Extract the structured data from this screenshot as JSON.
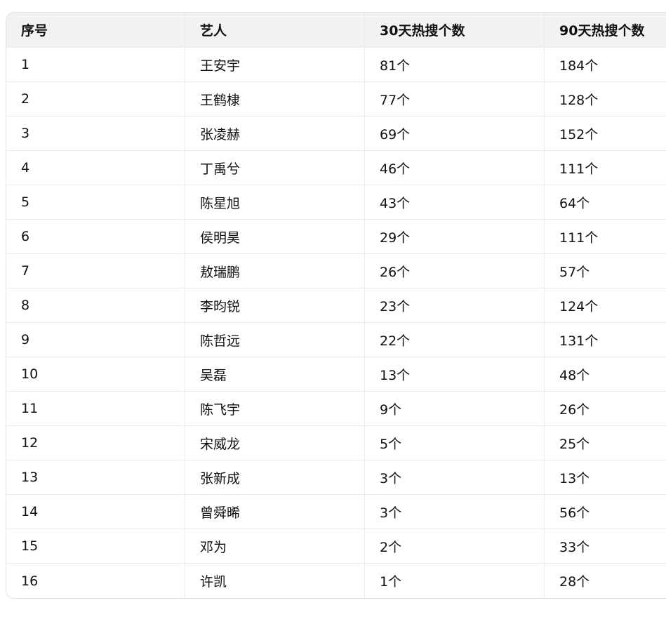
{
  "table": {
    "headers": [
      "序号",
      "艺人",
      "30天热搜个数",
      "90天热搜个数"
    ],
    "rows": [
      [
        "1",
        "王安宇",
        "81个",
        "184个"
      ],
      [
        "2",
        "王鹤棣",
        "77个",
        "128个"
      ],
      [
        "3",
        "张凌赫",
        "69个",
        "152个"
      ],
      [
        "4",
        "丁禹兮",
        "46个",
        "111个"
      ],
      [
        "5",
        "陈星旭",
        "43个",
        "64个"
      ],
      [
        "6",
        "侯明昊",
        "29个",
        "111个"
      ],
      [
        "7",
        "敖瑞鹏",
        "26个",
        "57个"
      ],
      [
        "8",
        "李昀锐",
        "23个",
        "124个"
      ],
      [
        "9",
        "陈哲远",
        "22个",
        "131个"
      ],
      [
        "10",
        "吴磊",
        "13个",
        "48个"
      ],
      [
        "11",
        "陈飞宇",
        "9个",
        "26个"
      ],
      [
        "12",
        "宋威龙",
        "5个",
        "25个"
      ],
      [
        "13",
        "张新成",
        "3个",
        "13个"
      ],
      [
        "14",
        "曾舜晞",
        "3个",
        "56个"
      ],
      [
        "15",
        "邓为",
        "2个",
        "33个"
      ],
      [
        "16",
        "许凯",
        "1个",
        "28个"
      ]
    ]
  }
}
